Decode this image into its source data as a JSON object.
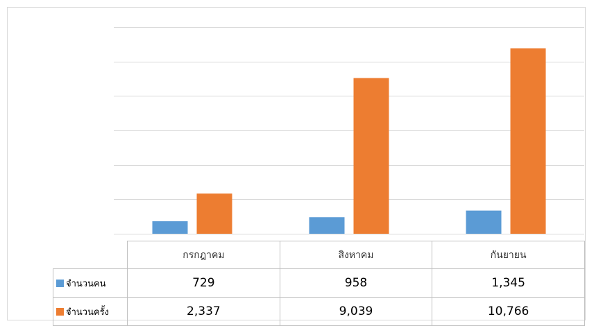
{
  "chart_data": {
    "type": "bar",
    "categories": [
      "กรกฎาคม",
      "สิงหาคม",
      "กันยายน"
    ],
    "series": [
      {
        "name": "จำนวนคน",
        "values": [
          729,
          958,
          1345
        ],
        "labels": [
          "729",
          "958",
          "1,345"
        ],
        "color": "#5b9bd5"
      },
      {
        "name": "จำนวนครั้ง",
        "values": [
          2337,
          9039,
          10766
        ],
        "labels": [
          "2,337",
          "9,039",
          "10,766"
        ],
        "color": "#ed7d31"
      }
    ],
    "ylim": [
      0,
      12000
    ],
    "y_gridline_step": 2000,
    "grid": true,
    "legend": "data-table"
  }
}
